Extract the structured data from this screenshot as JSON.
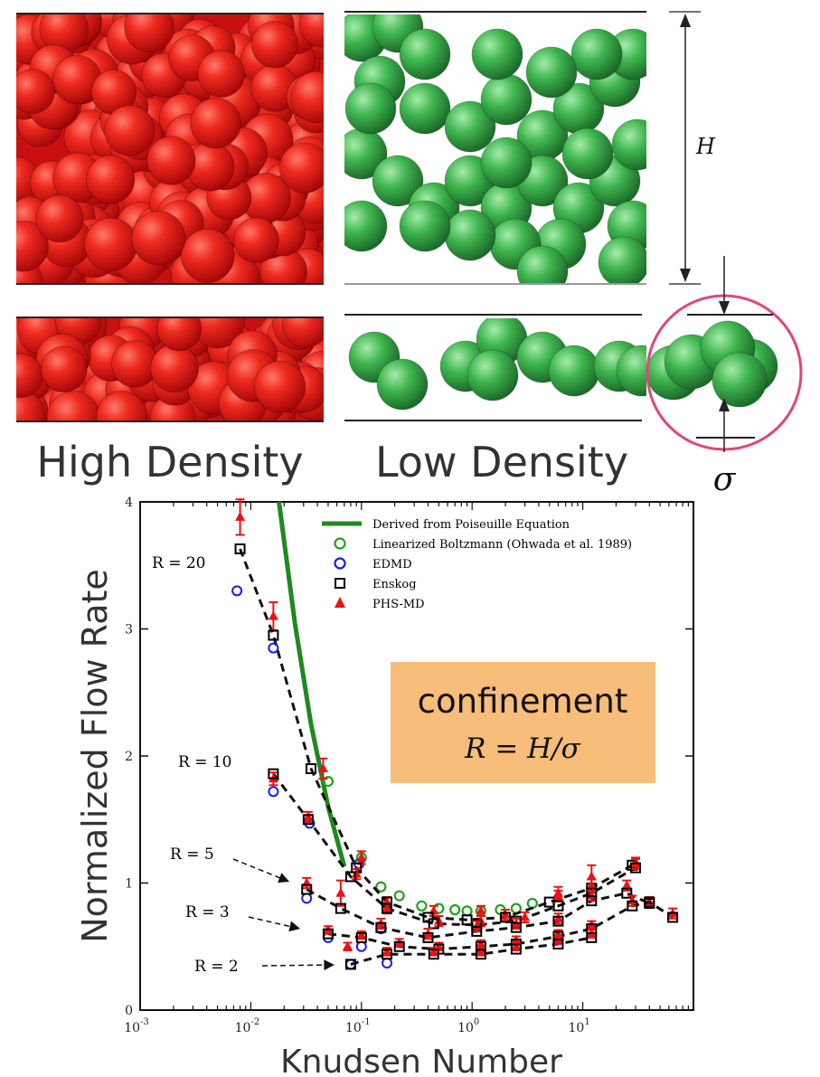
{
  "panels": {
    "high_density_label": "High Density",
    "low_density_label": "Low Density",
    "height_symbol": "H",
    "diameter_symbol": "σ",
    "colors": {
      "high": "#e01515",
      "low": "#3aa84a",
      "circle": "#e0467c"
    }
  },
  "chart_data": {
    "type": "scatter",
    "xlabel": "Knudsen Number",
    "ylabel": "Normalized Flow Rate",
    "xscale": "log",
    "xlim": [
      0.001,
      100
    ],
    "ylim": [
      0,
      4
    ],
    "xticks": [
      {
        "base": "10",
        "exp": "-3",
        "value": 0.001
      },
      {
        "base": "10",
        "exp": "-2",
        "value": 0.01
      },
      {
        "base": "10",
        "exp": "-1",
        "value": 0.1
      },
      {
        "base": "10",
        "exp": "0",
        "value": 1
      },
      {
        "base": "10",
        "exp": "1",
        "value": 10
      }
    ],
    "yticks": [
      "0",
      "1",
      "2",
      "3",
      "4"
    ],
    "legend_position": "top-right",
    "legend": [
      {
        "label": "Derived from Poiseuille Equation",
        "marker": "line",
        "color": "#1e8a1e"
      },
      {
        "label": "Linearized Boltzmann (Ohwada et al. 1989)",
        "marker": "circle",
        "color": "#22a022"
      },
      {
        "label": "EDMD",
        "marker": "circle",
        "color": "#1a1aee"
      },
      {
        "label": "Enskog",
        "marker": "square",
        "color": "#000000"
      },
      {
        "label": "PHS-MD",
        "marker": "triangle",
        "color": "#ee1111"
      }
    ],
    "annotation": {
      "title": "confinement",
      "formula": "R = H/σ",
      "color": "#f7bd7a"
    },
    "poiseuille": {
      "x": [
        0.018,
        0.025,
        0.035,
        0.05,
        0.07
      ],
      "y": [
        4.0,
        3.05,
        2.25,
        1.6,
        1.13
      ]
    },
    "linearized_boltzmann": {
      "x": [
        0.05,
        0.1,
        0.15,
        0.22,
        0.35,
        0.5,
        0.7,
        0.9,
        1.2,
        1.8,
        2.5,
        3.5
      ],
      "y": [
        1.8,
        1.2,
        0.97,
        0.9,
        0.82,
        0.8,
        0.79,
        0.78,
        0.78,
        0.79,
        0.8,
        0.84
      ]
    },
    "series": [
      {
        "label": "R = 20",
        "enskog": {
          "x": [
            0.008,
            0.016,
            0.035,
            0.09,
            0.17,
            0.4,
            0.9,
            2.0,
            5.0,
            12.0,
            28.0
          ],
          "y": [
            3.63,
            2.95,
            1.9,
            1.12,
            0.85,
            0.73,
            0.71,
            0.73,
            0.85,
            0.96,
            1.14
          ]
        },
        "edmd": {
          "x": [
            0.0075,
            0.016,
            0.095
          ],
          "y": [
            3.3,
            2.85,
            1.15
          ]
        },
        "phs": {
          "x": [
            0.008,
            0.016,
            0.045,
            0.1,
            0.17,
            0.45,
            1.2,
            2.0,
            6.0,
            12.0,
            30.0
          ],
          "y": [
            3.88,
            3.1,
            1.9,
            1.2,
            0.85,
            0.78,
            0.78,
            0.75,
            0.92,
            1.05,
            1.16
          ],
          "err": [
            0.14,
            0.11,
            0.08,
            0.05,
            0.04,
            0.04,
            0.04,
            0.04,
            0.05,
            0.09,
            0.04
          ]
        }
      },
      {
        "label": "R = 10",
        "enskog": {
          "x": [
            0.016,
            0.033,
            0.08,
            0.17,
            0.45,
            1.1,
            2.5,
            6.0,
            12.0,
            30.0
          ],
          "y": [
            1.86,
            1.5,
            1.05,
            0.8,
            0.68,
            0.67,
            0.7,
            0.82,
            0.92,
            1.12
          ]
        },
        "edmd": {
          "x": [
            0.016,
            0.034
          ],
          "y": [
            1.72,
            1.47
          ]
        },
        "phs": {
          "x": [
            0.016,
            0.033,
            0.09,
            0.17,
            0.5,
            1.2,
            3.0,
            6.0,
            12.0,
            30.0
          ],
          "y": [
            1.82,
            1.52,
            1.07,
            0.8,
            0.7,
            0.7,
            0.73,
            0.9,
            0.98,
            1.15
          ],
          "err": [
            0.05,
            0.04,
            0.04,
            0.04,
            0.04,
            0.04,
            0.04,
            0.04,
            0.05,
            0.04
          ]
        }
      },
      {
        "label": "R = 5",
        "enskog": {
          "x": [
            0.032,
            0.065,
            0.15,
            0.4,
            1.1,
            2.5,
            6.0,
            12.0,
            25.0,
            40.0
          ],
          "y": [
            0.95,
            0.8,
            0.65,
            0.57,
            0.62,
            0.65,
            0.7,
            0.86,
            0.92,
            0.84
          ]
        },
        "edmd": {
          "x": [
            0.032,
            0.15
          ],
          "y": [
            0.88,
            0.64
          ]
        },
        "phs": {
          "x": [
            0.032,
            0.065,
            0.15,
            0.4,
            1.1,
            2.5,
            6.0,
            12.0,
            25.0,
            40.0
          ],
          "y": [
            1.0,
            0.92,
            0.68,
            0.6,
            0.66,
            0.68,
            0.72,
            0.9,
            0.98,
            0.85
          ],
          "err": [
            0.04,
            0.1,
            0.04,
            0.04,
            0.04,
            0.04,
            0.04,
            0.04,
            0.04,
            0.04
          ]
        }
      },
      {
        "label": "R = 3",
        "enskog": {
          "x": [
            0.05,
            0.1,
            0.22,
            0.5,
            1.2,
            2.5,
            6.0,
            12.0,
            28.0,
            40.0,
            65.0
          ],
          "y": [
            0.6,
            0.57,
            0.5,
            0.48,
            0.5,
            0.52,
            0.58,
            0.64,
            0.82,
            0.85,
            0.73
          ]
        },
        "edmd": {
          "x": [
            0.05,
            0.1
          ],
          "y": [
            0.57,
            0.5
          ]
        },
        "phs": {
          "x": [
            0.05,
            0.1,
            0.22,
            0.5,
            1.2,
            2.5,
            6.0,
            12.0,
            28.0,
            65.0
          ],
          "y": [
            0.63,
            0.59,
            0.53,
            0.5,
            0.52,
            0.55,
            0.6,
            0.67,
            0.86,
            0.76
          ],
          "err": [
            0.03,
            0.03,
            0.03,
            0.03,
            0.03,
            0.03,
            0.03,
            0.03,
            0.04,
            0.04
          ]
        }
      },
      {
        "label": "R = 2",
        "enskog": {
          "x": [
            0.08,
            0.17,
            0.45,
            1.2,
            2.5,
            6.0,
            12.0
          ],
          "y": [
            0.36,
            0.44,
            0.44,
            0.44,
            0.48,
            0.52,
            0.57
          ]
        },
        "edmd": {
          "x": [
            0.08,
            0.17
          ],
          "y": [
            0.36,
            0.37
          ]
        },
        "phs": {
          "x": [
            0.075,
            0.17,
            0.45,
            1.2,
            2.5,
            6.0,
            12.0
          ],
          "y": [
            0.5,
            0.46,
            0.46,
            0.46,
            0.5,
            0.55,
            0.6
          ],
          "err": [
            0.03,
            0.03,
            0.03,
            0.03,
            0.03,
            0.03,
            0.03
          ]
        }
      }
    ]
  }
}
